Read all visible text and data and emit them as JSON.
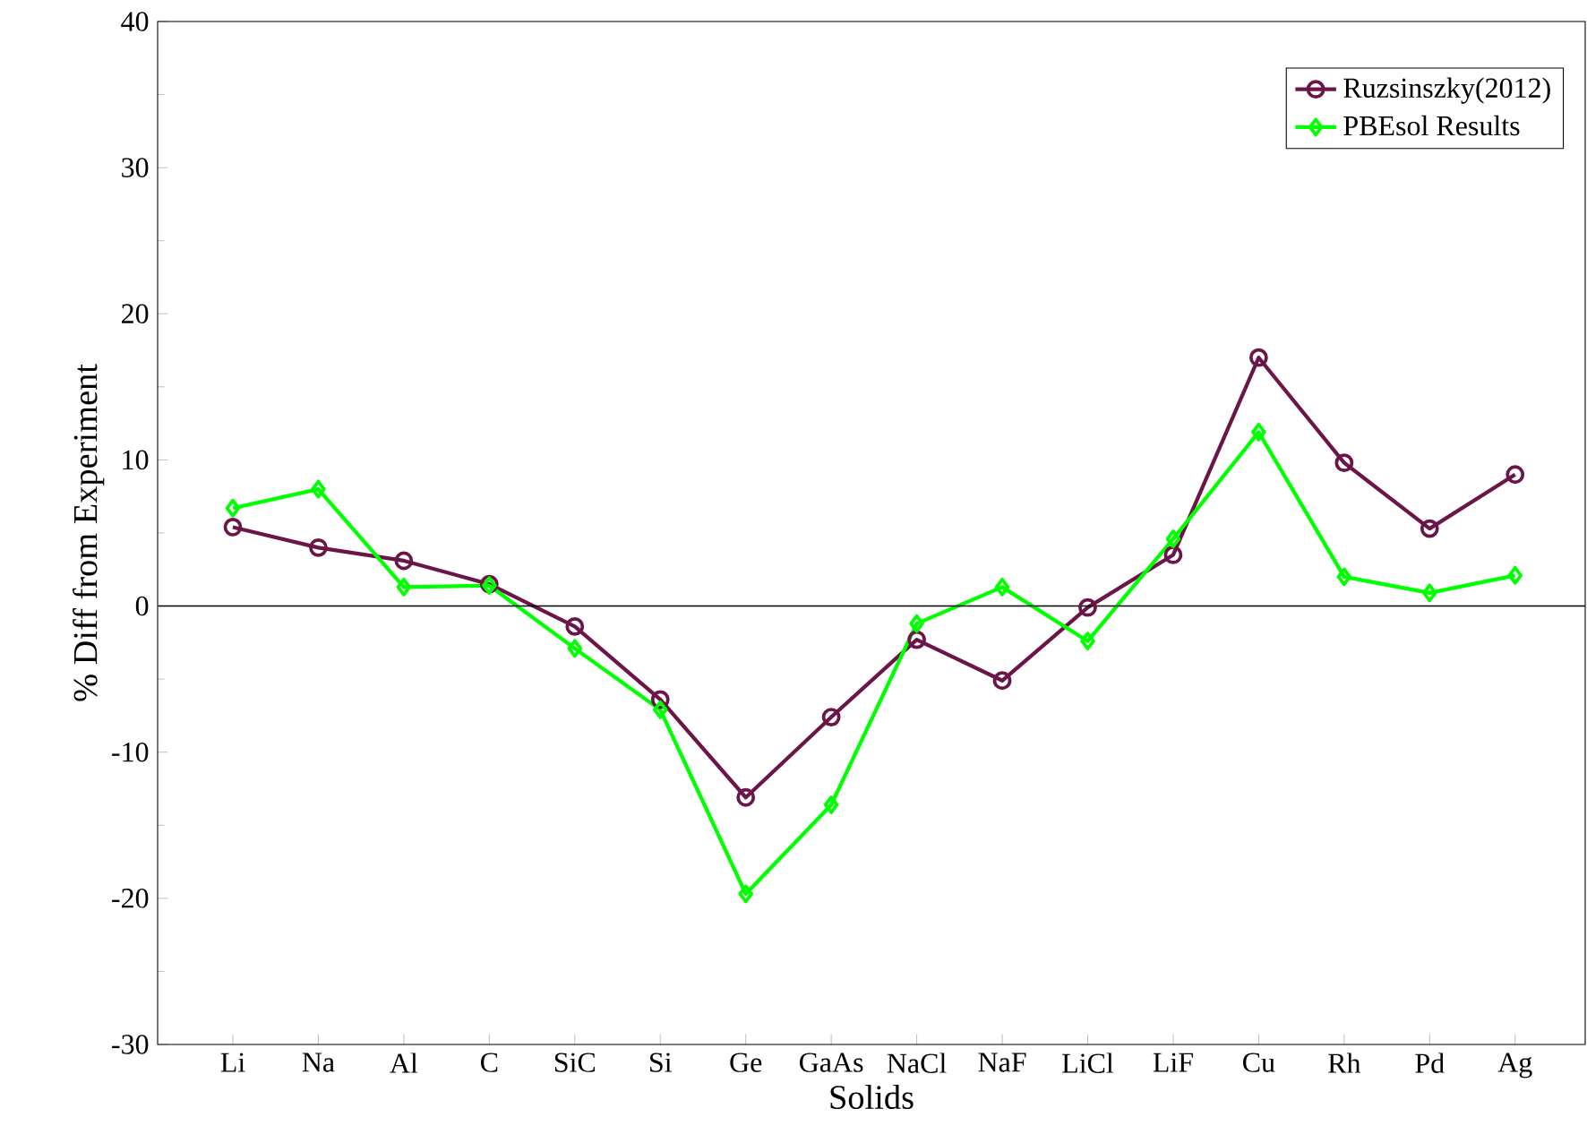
{
  "chart_data": {
    "type": "line",
    "xlabel": "Solids",
    "ylabel": "% Diff from Experiment",
    "categories": [
      "Li",
      "Na",
      "Al",
      "C",
      "SiC",
      "Si",
      "Ge",
      "GaAs",
      "NaCl",
      "NaF",
      "LiCl",
      "LiF",
      "Cu",
      "Rh",
      "Pd",
      "Ag"
    ],
    "series": [
      {
        "name": "Ruzsinszky(2012)",
        "color": "#6b1548",
        "marker": "circle",
        "values": [
          5.4,
          4.0,
          3.1,
          1.5,
          -1.4,
          -6.4,
          -13.1,
          -7.6,
          -2.3,
          -5.1,
          -0.1,
          3.5,
          17.0,
          9.8,
          5.3,
          9.0
        ]
      },
      {
        "name": "PBEsol Results",
        "color": "#00ff00",
        "marker": "diamond",
        "values": [
          6.7,
          8.0,
          1.3,
          1.4,
          -2.9,
          -7.1,
          -19.7,
          -13.6,
          -1.2,
          1.3,
          -2.4,
          4.6,
          11.9,
          2.0,
          0.9,
          2.1
        ]
      }
    ],
    "ylim": [
      -30,
      40
    ],
    "yticks": [
      -30,
      -20,
      -10,
      0,
      10,
      20,
      30,
      40
    ],
    "ref_lines": [
      {
        "axis": "y",
        "value": 0,
        "color": "#000000"
      }
    ],
    "grid": false,
    "legend": "top right"
  }
}
